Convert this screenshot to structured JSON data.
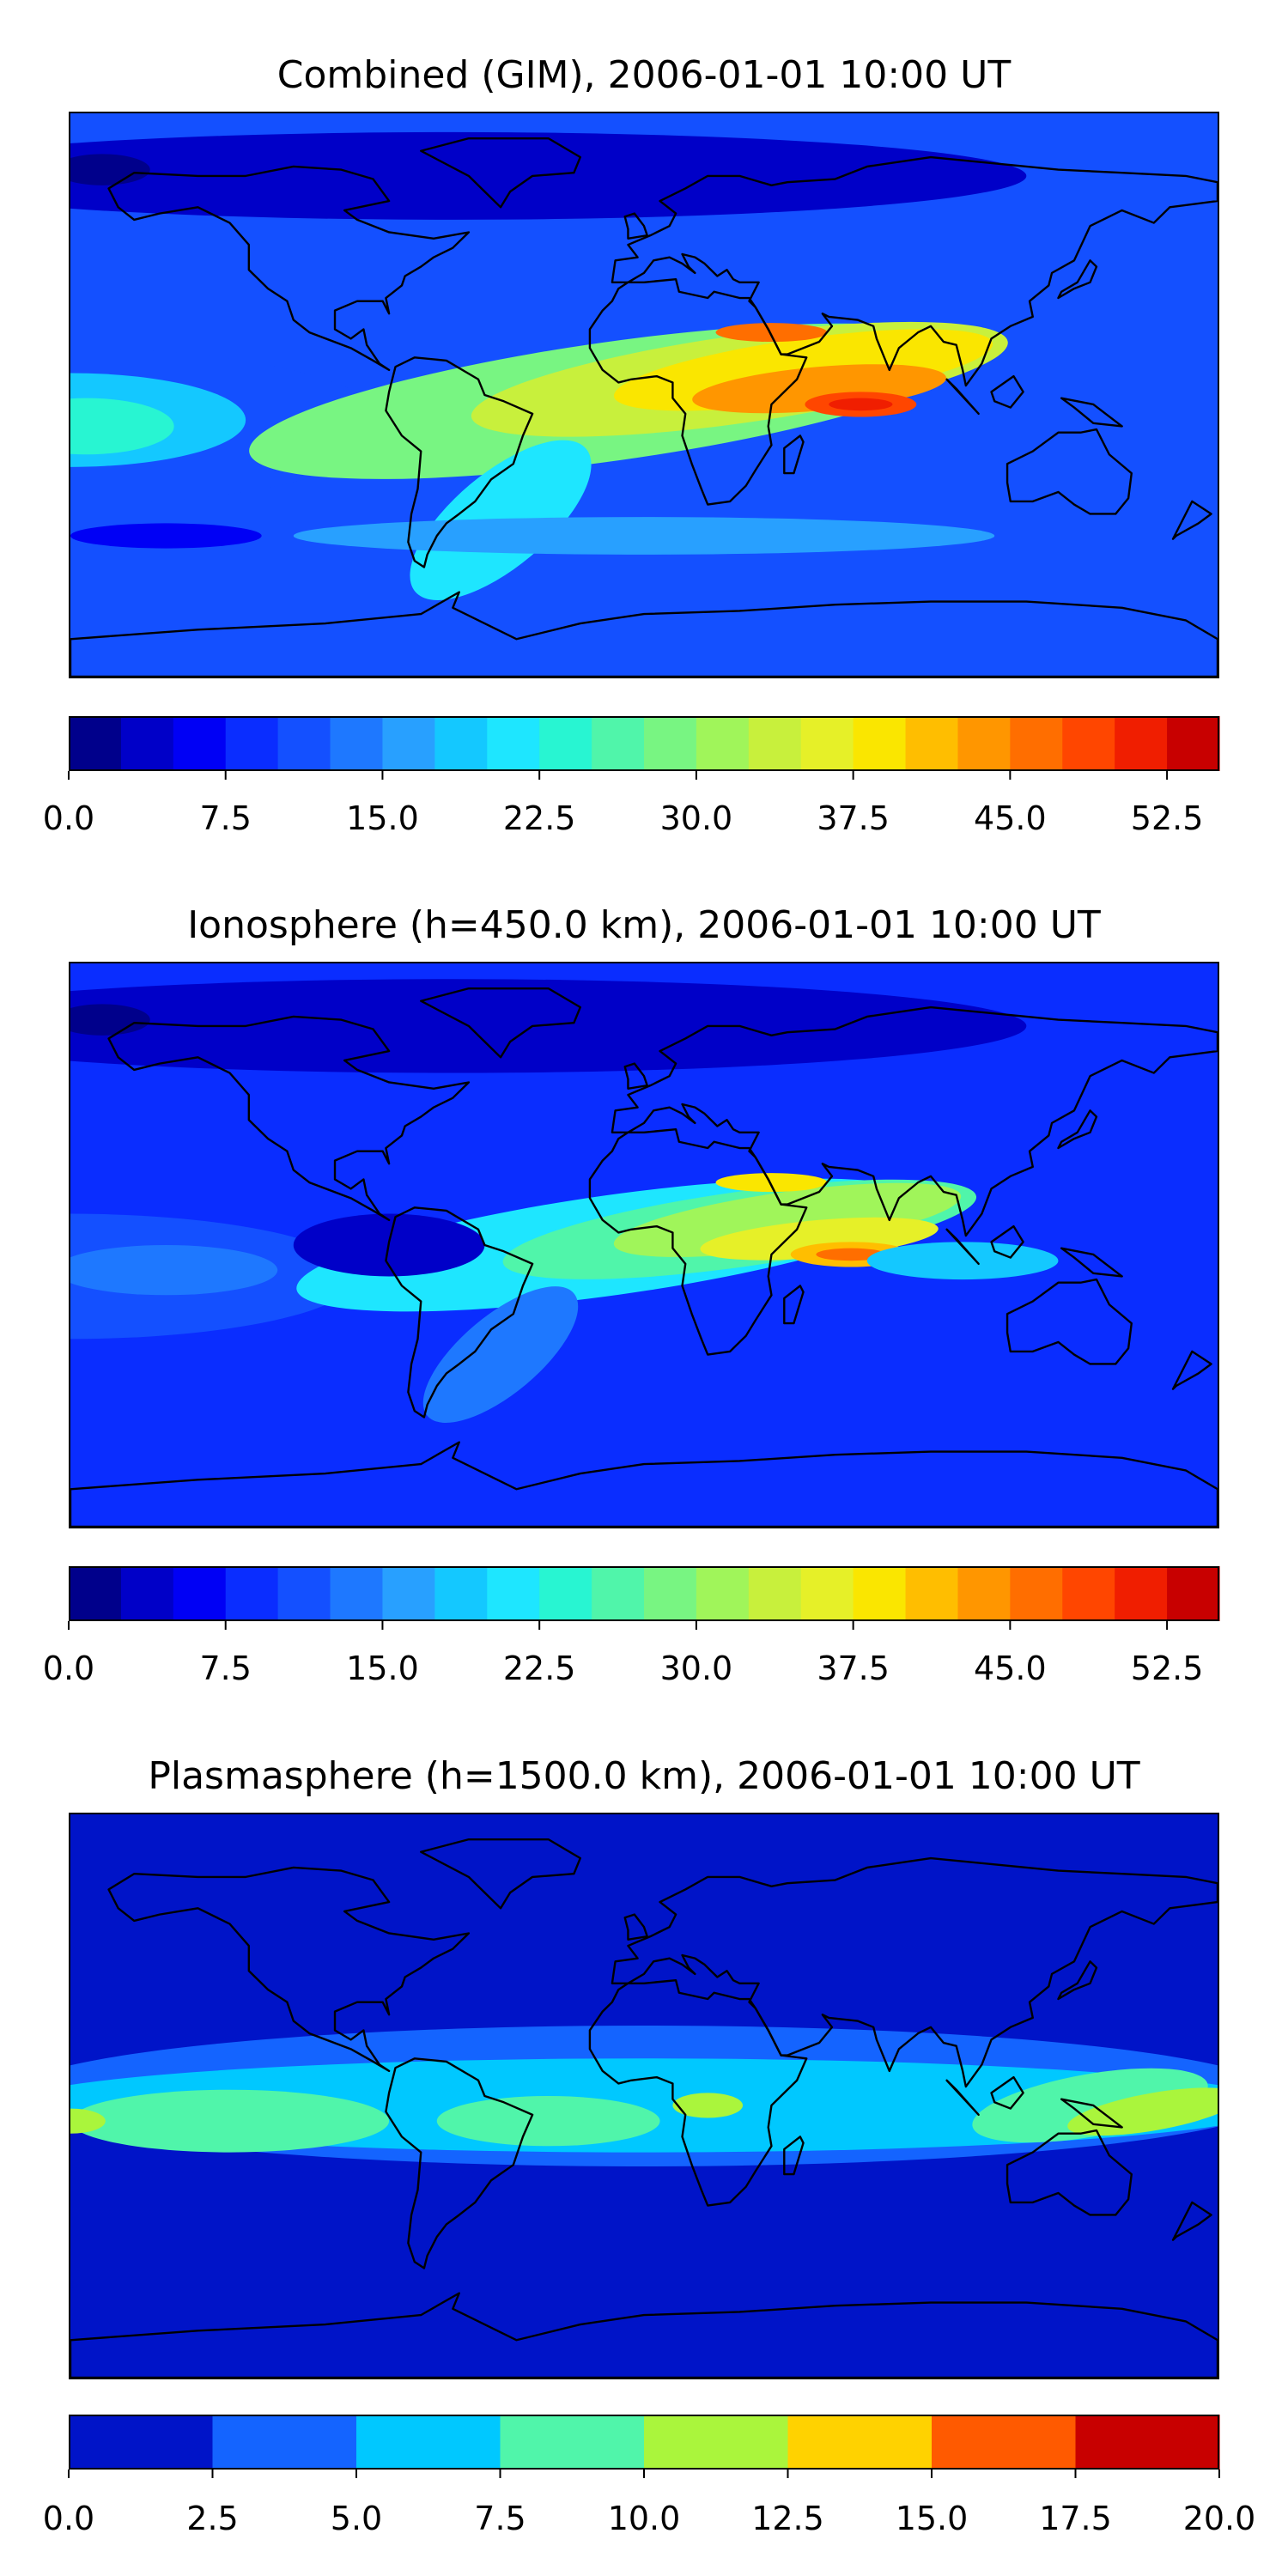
{
  "chart_data": [
    {
      "type": "heatmap",
      "title": "Combined (GIM), 2006-01-01 10:00 UT",
      "colorbar": {
        "levels": [
          0.0,
          2.5,
          5.0,
          7.5,
          10.0,
          12.5,
          15.0,
          17.5,
          20.0,
          22.5,
          25.0,
          27.5,
          30.0,
          32.5,
          35.0,
          37.5,
          40.0,
          42.5,
          45.0,
          47.5,
          50.0,
          52.5,
          55.0
        ],
        "colors": [
          "#00008b",
          "#0000c8",
          "#0000f5",
          "#0a2dff",
          "#1450ff",
          "#1e78ff",
          "#28a0ff",
          "#14c8ff",
          "#1ee6ff",
          "#28f5d2",
          "#50f5aa",
          "#78f582",
          "#a0f55a",
          "#c8f03c",
          "#e6f028",
          "#fae600",
          "#ffbe00",
          "#ff9600",
          "#ff6e00",
          "#ff4600",
          "#f01e00",
          "#c80000",
          "#8b0000"
        ],
        "tick_values": [
          0.0,
          7.5,
          15.0,
          22.5,
          30.0,
          37.5,
          45.0,
          52.5
        ],
        "tick_labels": [
          "0.0",
          "7.5",
          "15.0",
          "22.5",
          "30.0",
          "37.5",
          "45.0",
          "52.5"
        ]
      },
      "field_summary": {
        "min": 0.0,
        "max": 55.0,
        "peak_region": "Indian Ocean / Arabia"
      }
    },
    {
      "type": "heatmap",
      "title": "Ionosphere  (h=450.0 km), 2006-01-01 10:00 UT",
      "colorbar": {
        "levels": [
          0.0,
          2.5,
          5.0,
          7.5,
          10.0,
          12.5,
          15.0,
          17.5,
          20.0,
          22.5,
          25.0,
          27.5,
          30.0,
          32.5,
          35.0,
          37.5,
          40.0,
          42.5,
          45.0,
          47.5,
          50.0,
          52.5,
          55.0
        ],
        "colors": [
          "#00008b",
          "#0000c8",
          "#0000f5",
          "#0a2dff",
          "#1450ff",
          "#1e78ff",
          "#28a0ff",
          "#14c8ff",
          "#1ee6ff",
          "#28f5d2",
          "#50f5aa",
          "#78f582",
          "#a0f55a",
          "#c8f03c",
          "#e6f028",
          "#fae600",
          "#ffbe00",
          "#ff9600",
          "#ff6e00",
          "#ff4600",
          "#f01e00",
          "#c80000",
          "#8b0000"
        ],
        "tick_values": [
          0.0,
          7.5,
          15.0,
          22.5,
          30.0,
          37.5,
          45.0,
          52.5
        ],
        "tick_labels": [
          "0.0",
          "7.5",
          "15.0",
          "22.5",
          "30.0",
          "37.5",
          "45.0",
          "52.5"
        ]
      },
      "field_summary": {
        "min": 0.0,
        "max": 47.5,
        "peak_region": "Indian Ocean"
      }
    },
    {
      "type": "heatmap",
      "title": "Plasmasphere (h=1500.0 km), 2006-01-01 10:00 UT",
      "colorbar": {
        "levels": [
          0.0,
          2.5,
          5.0,
          7.5,
          10.0,
          12.5,
          15.0,
          17.5,
          20.0
        ],
        "colors": [
          "#0014c8",
          "#1464ff",
          "#00c8ff",
          "#50f5aa",
          "#aaf53c",
          "#ffd200",
          "#ff5a00",
          "#c80000"
        ],
        "tick_values": [
          0.0,
          2.5,
          5.0,
          7.5,
          10.0,
          12.5,
          15.0,
          17.5,
          20.0
        ],
        "tick_labels": [
          "0.0",
          "2.5",
          "5.0",
          "7.5",
          "10.0",
          "12.5",
          "15.0",
          "17.5",
          "20.0"
        ]
      },
      "field_summary": {
        "min": 0.0,
        "max": 12.5,
        "peak_region": "Western Pacific / Indonesia"
      }
    }
  ]
}
